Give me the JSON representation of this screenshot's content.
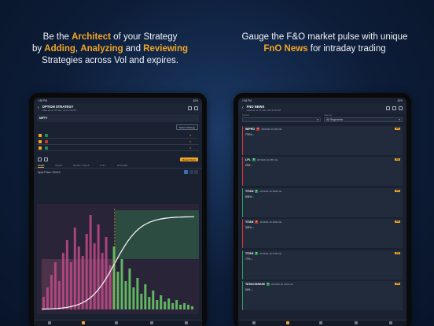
{
  "left_headline": {
    "p1": "Be the ",
    "h1": "Architect",
    "p2": " of your Strategy",
    "p3": "by ",
    "h2": "Adding",
    "p4": ", ",
    "h3": "Analyzing",
    "p5": " and ",
    "h4": "Reviewing",
    "p6": "Strategies across Vol and expires."
  },
  "right_headline": {
    "line1": "Gauge the F&O market pulse with unique",
    "h1": "FnO News",
    "p1": " for intraday trading"
  },
  "colors": {
    "accent": "#f5a623",
    "buy": "#1f8f4e",
    "sell": "#c0392b",
    "background": "#0d1d38"
  },
  "left_device": {
    "status": {
      "time": "1:55 PM",
      "battery": "62%"
    },
    "nav": {
      "title": "OPTION STRATEGY",
      "subtitle": "Data as on 07 Mar, 03:19:19 PM"
    },
    "symbol": "NIFTY",
    "strategy_button": "Select Strategy",
    "reset_button": "Reset Chart",
    "chart_tabs": [
      "Graph",
      "Payoff",
      "Greeks / Payoff",
      "P & L",
      "All Greeks"
    ],
    "chart_tab_active": 0,
    "chart_label": "Spot Price: 22474"
  },
  "right_device": {
    "status": {
      "time": "1:55 PM",
      "battery": "62%"
    },
    "nav": {
      "title": "FNO NEWS",
      "subtitle": "Data as on 07 Mar, 03:19:19 PM"
    },
    "filters": [
      {
        "label": "Symbol",
        "value": ""
      },
      {
        "label": "Segment",
        "value": "All Segments"
      }
    ],
    "news": [
      {
        "name": "WIPRO",
        "tag": "S",
        "expiry": "28-MAR-24 490 CE",
        "badge": "CE",
        "c1": "776%",
        "c1dir": "up",
        "color": "red"
      },
      {
        "name": "LPL",
        "tag": "B",
        "expiry": "28-MAR-24 185 CE",
        "badge": "CE",
        "c1": "23%",
        "c1dir": "dn",
        "color": "red"
      },
      {
        "name": "TITAN",
        "tag": "B",
        "expiry": "28-MAR-24 3800 CE",
        "badge": "CE",
        "c1": "505%",
        "c1dir": "up",
        "color": "green"
      },
      {
        "name": "TITAN",
        "tag": "S",
        "expiry": "28-MAR-24 3600 CE",
        "badge": "CE",
        "c1": "309%",
        "c1dir": "up",
        "color": "red"
      },
      {
        "name": "TITAN",
        "tag": "B",
        "expiry": "28-MAR-24 3700 CE",
        "badge": "CE",
        "c1": "77%",
        "c1dir": "up",
        "color": "green"
      },
      {
        "name": "TATACONSUM",
        "tag": "B",
        "expiry": "28-MAR-24 1200 CE",
        "badge": "CE",
        "c1": "64%",
        "c1dir": "up",
        "color": "green"
      }
    ]
  },
  "tabs": [
    "Home",
    "Portfolio",
    "Learn",
    "Notifications",
    "More"
  ],
  "active_tab": 1,
  "payoff_chart": {
    "bars": [
      8,
      14,
      22,
      30,
      18,
      36,
      44,
      30,
      52,
      40,
      34,
      48,
      60,
      42,
      54,
      36,
      46,
      28,
      40,
      24,
      32,
      18,
      26,
      14,
      20,
      10,
      16,
      8,
      12,
      6,
      9,
      5,
      7,
      4,
      6,
      3,
      4,
      3,
      2
    ],
    "curve_breakpoint": 0.48
  }
}
